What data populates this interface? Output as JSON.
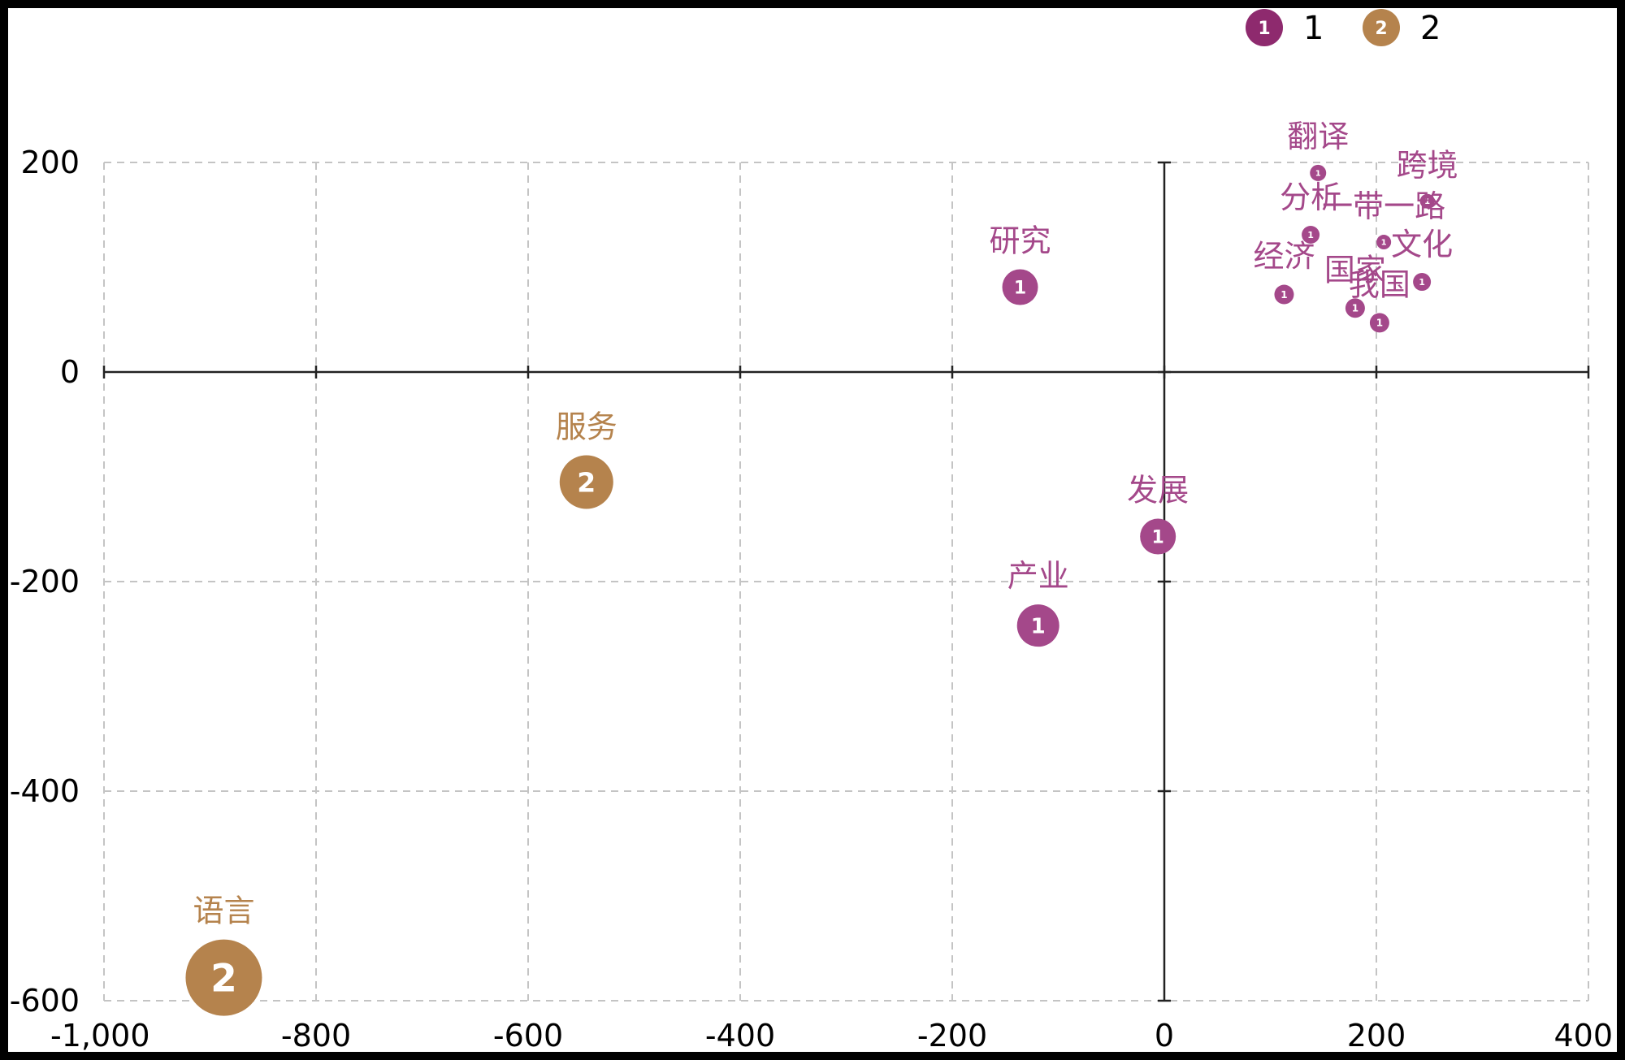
{
  "chart_data": {
    "type": "scatter",
    "title": "",
    "xlabel": "",
    "ylabel": "",
    "xlim": [
      -1000,
      400
    ],
    "ylim": [
      -600,
      200
    ],
    "x_ticks": [
      -1000,
      -800,
      -600,
      -400,
      -200,
      0,
      200,
      400
    ],
    "y_ticks": [
      -600,
      -400,
      -200,
      0,
      200
    ],
    "x_tick_labels": [
      "-1,000",
      "-800",
      "-600",
      "-400",
      "-200",
      "0",
      "200",
      "400"
    ],
    "y_tick_labels": [
      "-600",
      "-400",
      "-200",
      "0",
      "200"
    ],
    "grid": true,
    "legend_position": "top-right",
    "legend": [
      {
        "badge": "1",
        "label": "1",
        "color": "#8E2A6E"
      },
      {
        "badge": "2",
        "label": "2",
        "color": "#B5834D"
      }
    ],
    "series": [
      {
        "badge": "1",
        "color": "#A4488A",
        "points": [
          {
            "label": "翻译",
            "x": 145,
            "y": 190,
            "size": 10
          },
          {
            "label": "跨境",
            "x": 248,
            "y": 163,
            "size": 9
          },
          {
            "label": "分析",
            "x": 138,
            "y": 131,
            "size": 11
          },
          {
            "label": "一带一路",
            "x": 207,
            "y": 124,
            "size": 9
          },
          {
            "label": "文化",
            "x": 243,
            "y": 86,
            "size": 11
          },
          {
            "label": "经济",
            "x": 113,
            "y": 74,
            "size": 12
          },
          {
            "label": "国家",
            "x": 180,
            "y": 61,
            "size": 12
          },
          {
            "label": "我国",
            "x": 203,
            "y": 47,
            "size": 12
          },
          {
            "label": "研究",
            "x": -136,
            "y": 81,
            "size": 22
          },
          {
            "label": "发展",
            "x": -6,
            "y": -157,
            "size": 22
          },
          {
            "label": "产业",
            "x": -119,
            "y": -242,
            "size": 26
          }
        ]
      },
      {
        "badge": "2",
        "color": "#B5834D",
        "points": [
          {
            "label": "服务",
            "x": -545,
            "y": -105,
            "size": 33
          },
          {
            "label": "语言",
            "x": -887,
            "y": -578,
            "size": 47
          }
        ]
      }
    ]
  }
}
